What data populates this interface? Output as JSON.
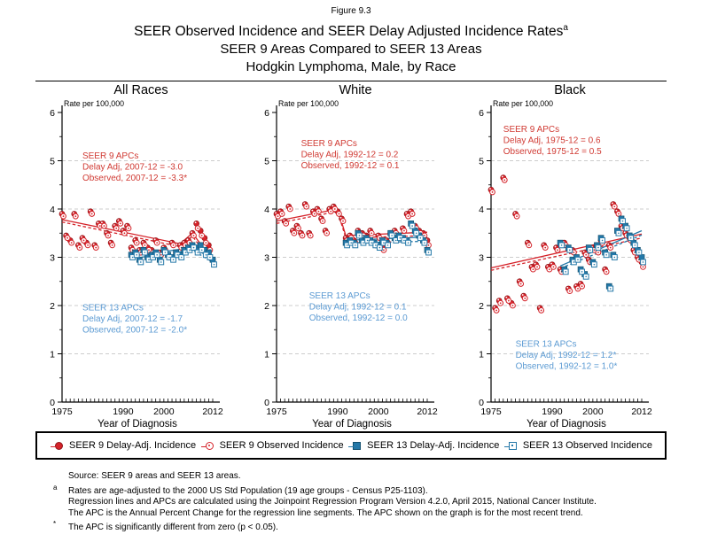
{
  "header": {
    "figure_label": "Figure 9.3",
    "title_line1": "SEER Observed Incidence and SEER Delay Adjusted Incidence Rates",
    "title_superscript": "a",
    "title_line2": "SEER 9 Areas Compared to SEER 13 Areas",
    "title_line3": "Hodgkin Lymphoma, Male, by Race"
  },
  "colors": {
    "seer9": "#D5232A",
    "seer9_dark": "#8F1216",
    "seer13": "#2478A8",
    "seer13_dark": "#12506E",
    "annotation_red": "#D03A33",
    "annotation_blue": "#5C9BD3",
    "gridline": "#CCCCCC",
    "axis": "#000000"
  },
  "axes": {
    "ylabel": "Rate per 100,000",
    "xlabel": "Year of Diagnosis",
    "y_ticks": [
      0,
      1,
      2,
      3,
      4,
      5,
      6
    ],
    "x_tick_labels": [
      1975,
      1990,
      2000,
      2012
    ],
    "xlim": [
      1975,
      2012
    ],
    "ylim": [
      0,
      6
    ],
    "grid": true,
    "legend_position": "bottom"
  },
  "chart_data": [
    {
      "type": "scatter",
      "title": "All Races",
      "series": [
        {
          "name": "SEER 9 Delay-Adj. Incidence",
          "start_year": 1975,
          "values": [
            3.9,
            3.45,
            3.35,
            3.9,
            3.25,
            3.4,
            3.3,
            3.95,
            3.25,
            3.7,
            3.7,
            3.5,
            3.3,
            3.65,
            3.75,
            3.55,
            3.65,
            3.2,
            3.35,
            3.15,
            3.3,
            3.2,
            3.15,
            3.35,
            3.1,
            3.2,
            3.05,
            3.3,
            3.1,
            3.25,
            3.3,
            3.35,
            3.5,
            3.7,
            3.55,
            3.4,
            3.25,
            2.95
          ]
        },
        {
          "name": "SEER 9 Observed Incidence",
          "start_year": 1975,
          "values": [
            3.85,
            3.4,
            3.3,
            3.85,
            3.2,
            3.35,
            3.25,
            3.9,
            3.2,
            3.65,
            3.65,
            3.45,
            3.25,
            3.6,
            3.7,
            3.5,
            3.6,
            3.15,
            3.3,
            3.1,
            3.25,
            3.15,
            3.1,
            3.3,
            3.05,
            3.15,
            3.0,
            3.25,
            3.05,
            3.2,
            3.25,
            3.3,
            3.45,
            3.6,
            3.45,
            3.3,
            3.15,
            2.85
          ]
        },
        {
          "name": "SEER 13 Delay-Adj. Incidence",
          "start_year": 1992,
          "values": [
            3.05,
            3.1,
            2.95,
            3.15,
            3.0,
            3.05,
            3.1,
            2.95,
            3.15,
            3.05,
            3.0,
            3.1,
            3.05,
            3.15,
            3.2,
            3.25,
            3.2,
            3.25,
            3.15,
            3.1,
            2.95
          ]
        },
        {
          "name": "SEER 13 Observed Incidence",
          "start_year": 1992,
          "values": [
            3.0,
            3.05,
            2.9,
            3.1,
            2.95,
            3.0,
            3.05,
            2.9,
            3.1,
            3.0,
            2.95,
            3.05,
            3.0,
            3.1,
            3.15,
            3.2,
            3.1,
            3.15,
            3.05,
            3.0,
            2.85
          ]
        }
      ],
      "trend_lines": [
        {
          "series": "SEER 9 Delay-Adj.",
          "color_key": "seer9",
          "style": "solid",
          "points": [
            [
              1975,
              3.78
            ],
            [
              2004,
              3.28
            ],
            [
              2007,
              3.5
            ],
            [
              2012,
              2.95
            ]
          ]
        },
        {
          "series": "SEER 9 Observed",
          "color_key": "seer9",
          "style": "dashed",
          "points": [
            [
              1975,
              3.73
            ],
            [
              2004,
              3.22
            ],
            [
              2007,
              3.44
            ],
            [
              2012,
              2.86
            ]
          ]
        },
        {
          "series": "SEER 13 Delay-Adj.",
          "color_key": "seer13",
          "style": "solid",
          "points": [
            [
              1992,
              3.02
            ],
            [
              2007,
              3.2
            ],
            [
              2012,
              2.97
            ]
          ]
        },
        {
          "series": "SEER 13 Observed",
          "color_key": "seer13",
          "style": "dashed",
          "points": [
            [
              1992,
              2.97
            ],
            [
              2007,
              3.15
            ],
            [
              2012,
              2.9
            ]
          ]
        }
      ],
      "annotations": {
        "seer9": {
          "year": 1980,
          "rate": 5.05,
          "lines": [
            "SEER 9 APCs",
            "Delay Adj, 2007-12 = -3.0",
            "Observed, 2007-12 = -3.3*"
          ]
        },
        "seer13": {
          "year": 1980,
          "rate": 1.9,
          "lines": [
            "SEER 13 APCs",
            "Delay Adj, 2007-12 = -1.7",
            "Observed, 2007-12 = -2.0*"
          ]
        }
      }
    },
    {
      "type": "scatter",
      "title": "White",
      "series": [
        {
          "name": "SEER 9 Delay-Adj. Incidence",
          "start_year": 1975,
          "values": [
            3.9,
            3.95,
            3.75,
            4.05,
            3.55,
            3.65,
            3.5,
            4.1,
            3.5,
            3.95,
            4.0,
            3.8,
            3.55,
            4.0,
            4.05,
            3.95,
            3.8,
            3.4,
            3.45,
            3.35,
            3.55,
            3.5,
            3.45,
            3.55,
            3.3,
            3.45,
            3.2,
            3.35,
            3.5,
            3.55,
            3.45,
            3.6,
            3.9,
            3.95,
            3.65,
            3.55,
            3.5,
            3.35
          ]
        },
        {
          "name": "SEER 9 Observed Incidence",
          "start_year": 1975,
          "values": [
            3.85,
            3.9,
            3.7,
            4.0,
            3.5,
            3.6,
            3.45,
            4.05,
            3.45,
            3.9,
            3.95,
            3.75,
            3.5,
            3.95,
            4.0,
            3.9,
            3.75,
            3.35,
            3.4,
            3.3,
            3.5,
            3.45,
            3.4,
            3.5,
            3.25,
            3.4,
            3.15,
            3.3,
            3.45,
            3.5,
            3.4,
            3.55,
            3.85,
            3.9,
            3.6,
            3.5,
            3.45,
            3.25
          ]
        },
        {
          "name": "SEER 13 Delay-Adj. Incidence",
          "start_year": 1992,
          "values": [
            3.3,
            3.35,
            3.3,
            3.5,
            3.35,
            3.4,
            3.35,
            3.3,
            3.25,
            3.35,
            3.3,
            3.5,
            3.4,
            3.45,
            3.4,
            3.35,
            3.7,
            3.55,
            3.45,
            3.35,
            3.15
          ]
        },
        {
          "name": "SEER 13 Observed Incidence",
          "start_year": 1992,
          "values": [
            3.25,
            3.3,
            3.25,
            3.45,
            3.3,
            3.35,
            3.3,
            3.25,
            3.2,
            3.3,
            3.25,
            3.45,
            3.35,
            3.4,
            3.35,
            3.3,
            3.65,
            3.5,
            3.4,
            3.3,
            3.1
          ]
        }
      ],
      "trend_lines": [
        {
          "series": "SEER 9 Delay-Adj.",
          "color_key": "seer9",
          "style": "solid",
          "points": [
            [
              1975,
              3.75
            ],
            [
              1990,
              4.0
            ],
            [
              1992,
              3.45
            ],
            [
              2012,
              3.52
            ]
          ]
        },
        {
          "series": "SEER 9 Observed",
          "color_key": "seer9",
          "style": "dashed",
          "points": [
            [
              1975,
              3.7
            ],
            [
              1990,
              3.95
            ],
            [
              1992,
              3.4
            ],
            [
              2012,
              3.45
            ]
          ]
        },
        {
          "series": "SEER 13 Delay-Adj.",
          "color_key": "seer13",
          "style": "solid",
          "points": [
            [
              1992,
              3.35
            ],
            [
              2012,
              3.42
            ]
          ]
        },
        {
          "series": "SEER 13 Observed",
          "color_key": "seer13",
          "style": "dashed",
          "points": [
            [
              1992,
              3.3
            ],
            [
              2012,
              3.33
            ]
          ]
        }
      ],
      "annotations": {
        "seer9": {
          "year": 1981,
          "rate": 5.3,
          "lines": [
            "SEER 9 APCs",
            "Delay Adj, 1992-12 = 0.2",
            "Observed, 1992-12 = 0.1"
          ]
        },
        "seer13": {
          "year": 1983,
          "rate": 2.15,
          "lines": [
            "SEER 13 APCs",
            "Delay Adj, 1992-12 = 0.1",
            "Observed, 1992-12 = 0.0"
          ]
        }
      }
    },
    {
      "type": "scatter",
      "title": "Black",
      "series": [
        {
          "name": "SEER 9 Delay-Adj. Incidence",
          "start_year": 1975,
          "values": [
            4.4,
            1.95,
            2.1,
            4.65,
            2.15,
            2.05,
            3.9,
            2.5,
            2.2,
            3.3,
            2.8,
            2.85,
            1.95,
            3.25,
            2.8,
            2.85,
            3.2,
            2.75,
            3.3,
            2.35,
            3.15,
            2.4,
            2.45,
            3.1,
            2.95,
            3.2,
            3.15,
            3.35,
            2.75,
            3.25,
            4.1,
            3.95,
            3.65,
            3.5,
            3.4,
            3.15,
            3.0,
            2.9
          ]
        },
        {
          "name": "SEER 9 Observed Incidence",
          "start_year": 1975,
          "values": [
            4.35,
            1.9,
            2.05,
            4.6,
            2.1,
            2.0,
            3.85,
            2.45,
            2.15,
            3.25,
            2.75,
            2.8,
            1.9,
            3.2,
            2.75,
            2.8,
            3.15,
            2.7,
            3.25,
            2.3,
            3.1,
            2.35,
            2.4,
            3.05,
            2.9,
            3.15,
            3.1,
            3.3,
            2.7,
            3.2,
            4.05,
            3.9,
            3.6,
            3.45,
            3.35,
            3.1,
            2.95,
            2.8
          ]
        },
        {
          "name": "SEER 13 Delay-Adj. Incidence",
          "start_year": 1992,
          "values": [
            3.3,
            2.75,
            3.2,
            2.95,
            3.0,
            2.75,
            2.65,
            3.2,
            2.9,
            3.25,
            3.4,
            3.1,
            2.4,
            3.05,
            3.55,
            3.8,
            3.65,
            3.45,
            3.3,
            3.15,
            3.0
          ]
        },
        {
          "name": "SEER 13 Observed Incidence",
          "start_year": 1992,
          "values": [
            3.25,
            2.7,
            3.15,
            2.9,
            2.95,
            2.7,
            2.6,
            3.15,
            2.85,
            3.2,
            3.35,
            3.05,
            2.35,
            3.0,
            3.5,
            3.75,
            3.6,
            3.4,
            3.25,
            3.1,
            2.9
          ]
        }
      ],
      "trend_lines": [
        {
          "series": "SEER 9 Delay-Adj.",
          "color_key": "seer9",
          "style": "solid",
          "points": [
            [
              1975,
              2.78
            ],
            [
              2012,
              3.48
            ]
          ]
        },
        {
          "series": "SEER 9 Observed",
          "color_key": "seer9",
          "style": "dashed",
          "points": [
            [
              1975,
              2.73
            ],
            [
              2012,
              3.4
            ]
          ]
        },
        {
          "series": "SEER 13 Delay-Adj.",
          "color_key": "seer13",
          "style": "solid",
          "points": [
            [
              1992,
              2.82
            ],
            [
              2012,
              3.55
            ]
          ]
        },
        {
          "series": "SEER 13 Observed",
          "color_key": "seer13",
          "style": "dashed",
          "points": [
            [
              1992,
              2.77
            ],
            [
              2012,
              3.46
            ]
          ]
        }
      ],
      "annotations": {
        "seer9": {
          "year": 1978,
          "rate": 5.6,
          "lines": [
            "SEER 9 APCs",
            "Delay Adj, 1975-12 = 0.6",
            "Observed, 1975-12 = 0.5"
          ]
        },
        "seer13": {
          "year": 1981,
          "rate": 1.15,
          "lines": [
            "SEER 13 APCs",
            "Delay Adj, 1992-12 = 1.2*",
            "Observed, 1992-12 = 1.0*"
          ]
        }
      }
    }
  ],
  "legend": {
    "items": [
      {
        "label": "SEER 9 Delay-Adj. Incidence",
        "marker": "filled-circle-red"
      },
      {
        "label": "SEER 9 Observed Incidence",
        "marker": "open-circle-red"
      },
      {
        "label": "SEER 13 Delay-Adj. Incidence",
        "marker": "filled-square-blue"
      },
      {
        "label": "SEER 13 Observed Incidence",
        "marker": "open-square-blue"
      }
    ]
  },
  "footnotes": [
    {
      "marker": "",
      "text": "Source: SEER 9 areas and SEER 13 areas."
    },
    {
      "marker": "a",
      "text": "Rates are age-adjusted to the 2000 US Std Population (19 age groups - Census P25-1103)."
    },
    {
      "marker": "",
      "text": "Regression lines and APCs are calculated using the Joinpoint Regression Program Version 4.2.0, April 2015, National Cancer Institute."
    },
    {
      "marker": "",
      "text": "The APC is the Annual Percent Change for the regression line segments. The APC shown on the graph is for the most recent trend."
    },
    {
      "marker": "*",
      "text": "The APC is significantly different from zero (p < 0.05)."
    }
  ]
}
